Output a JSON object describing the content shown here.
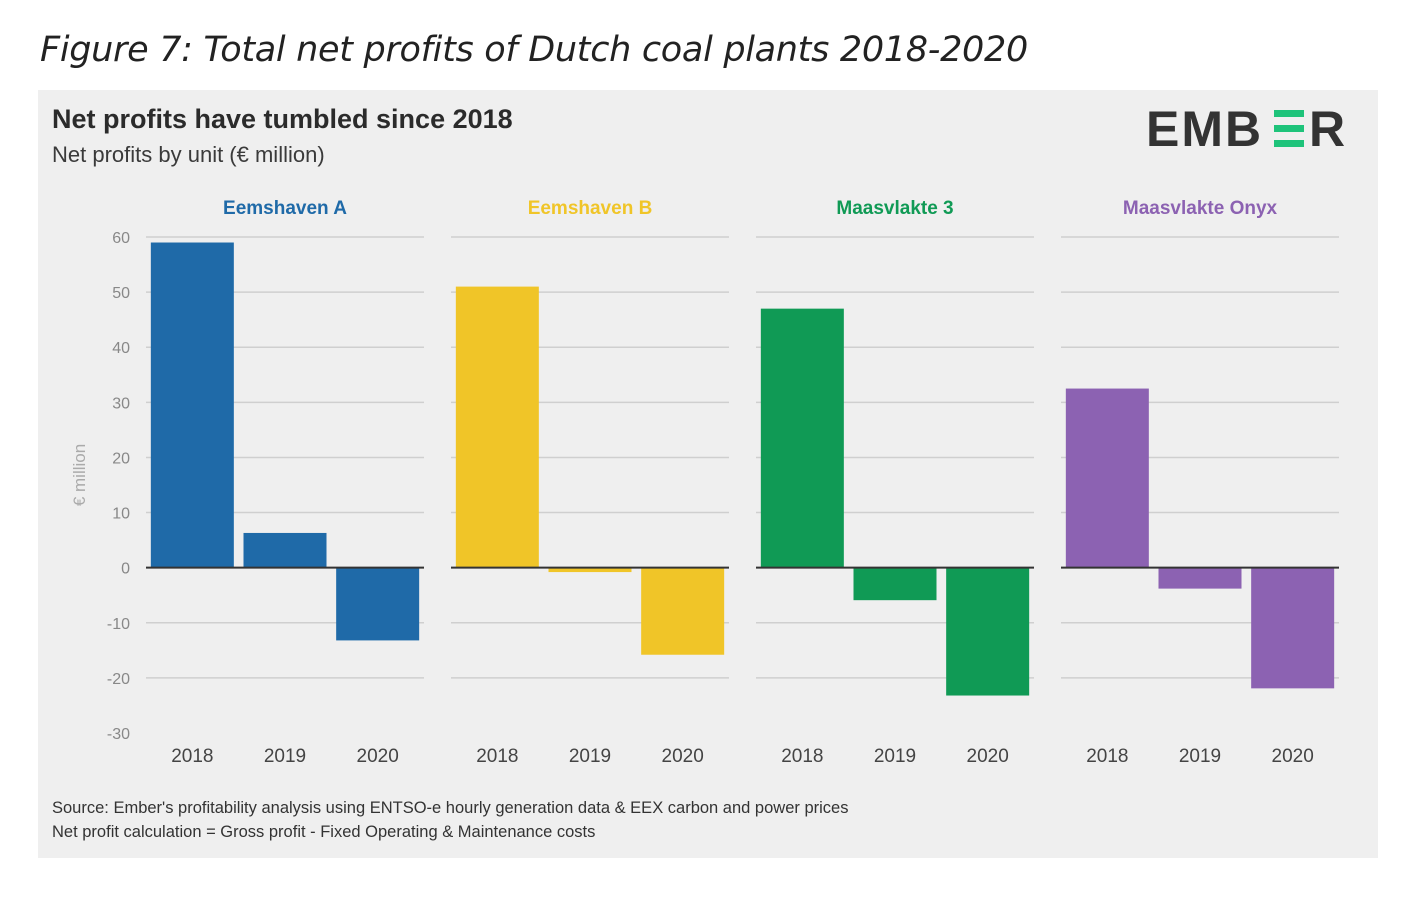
{
  "figure_caption": "Figure 7: Total net profits of Dutch coal plants 2018-2020",
  "card": {
    "title": "Net profits have tumbled since 2018",
    "subtitle": "Net profits by unit (€ million)",
    "logo_text": "EMBER",
    "source_line_1": "Source: Ember's profitability analysis using ENTSO-e hourly generation data & EEX carbon and power prices",
    "source_line_2": "Net profit calculation = Gross profit - Fixed Operating & Maintenance costs"
  },
  "colors": {
    "background": "#efefef",
    "gridline": "#cfcfcf",
    "zero_line": "#333333",
    "tick_label": "#888888",
    "logo_dark": "#333333",
    "logo_accent": "#1ec37a"
  },
  "chart_data": {
    "type": "bar",
    "title": "Net profits have tumbled since 2018",
    "subtitle": "Net profits by unit (€ million)",
    "ylabel": "€ million",
    "ylim": [
      -30,
      60
    ],
    "yticks": [
      60,
      50,
      40,
      30,
      20,
      10,
      0,
      -10,
      -20,
      -30
    ],
    "grid": true,
    "categories": [
      "2018",
      "2019",
      "2020"
    ],
    "panels": [
      {
        "name": "Eemshaven A",
        "color": "#1f6aa8",
        "values": [
          59,
          6.3,
          -13.2
        ]
      },
      {
        "name": "Eemshaven B",
        "color": "#f0c528",
        "values": [
          51,
          -0.8,
          -15.8
        ]
      },
      {
        "name": "Maasvlakte 3",
        "color": "#109a55",
        "values": [
          47,
          -5.9,
          -23.2
        ]
      },
      {
        "name": "Maasvlakte Onyx",
        "color": "#8c62b2",
        "values": [
          32.5,
          -3.8,
          -21.9
        ]
      }
    ]
  }
}
